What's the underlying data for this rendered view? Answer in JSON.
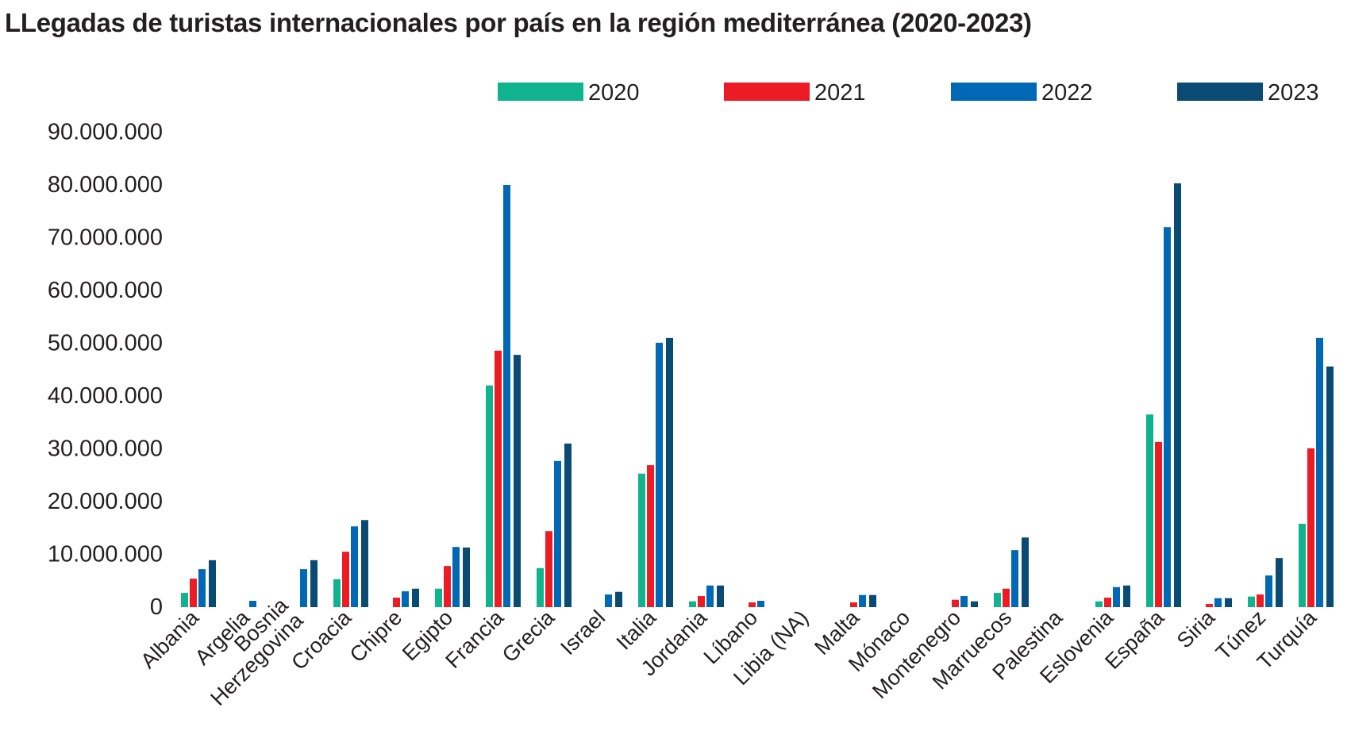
{
  "chart_data": {
    "type": "bar",
    "title": "LLegadas de turistas internacionales por país en la región mediterránea (2020-2023)",
    "xlabel": "",
    "ylabel": "",
    "ylim": [
      0,
      90000000
    ],
    "yticks": [
      0,
      10000000,
      20000000,
      30000000,
      40000000,
      50000000,
      60000000,
      70000000,
      80000000,
      90000000
    ],
    "ytick_labels": [
      "0",
      "10.000.000",
      "20.000.000",
      "30.000.000",
      "40.000.000",
      "50.000.000",
      "60.000.000",
      "70.000.000",
      "80.000.000",
      "90.000.000"
    ],
    "grid": false,
    "legend_position": "top-right",
    "categories": [
      "Albania",
      "Argelia",
      "Bosnia\nHerzegovina",
      "Croacia",
      "Chipre",
      "Egipto",
      "Francia",
      "Grecia",
      "Israel",
      "Italia",
      "Jordania",
      "Líbano",
      "Libia (NA)",
      "Malta",
      "Mónaco",
      "Montenegro",
      "Marruecos",
      "Palestina",
      "Eslovenia",
      "España",
      "Siria",
      "Túnez",
      "Turquía"
    ],
    "series": [
      {
        "name": "2020",
        "color": "#0fb48e",
        "values": [
          2700000,
          null,
          null,
          5300000,
          null,
          3500000,
          42000000,
          7400000,
          null,
          25300000,
          1100000,
          null,
          null,
          null,
          null,
          null,
          2700000,
          null,
          1100000,
          36500000,
          null,
          2000000,
          15800000
        ]
      },
      {
        "name": "2021",
        "color": "#ed1c24",
        "values": [
          5400000,
          null,
          null,
          10500000,
          1800000,
          7800000,
          48600000,
          14400000,
          null,
          26900000,
          2100000,
          900000,
          null,
          900000,
          null,
          1400000,
          3500000,
          null,
          1800000,
          31300000,
          600000,
          2400000,
          30100000
        ]
      },
      {
        "name": "2022",
        "color": "#0068b5",
        "values": [
          7200000,
          1200000,
          7200000,
          15300000,
          3000000,
          11400000,
          80000000,
          27700000,
          2400000,
          50100000,
          4100000,
          1200000,
          null,
          2300000,
          null,
          2100000,
          10800000,
          null,
          3800000,
          72000000,
          1700000,
          6000000,
          51000000
        ]
      },
      {
        "name": "2023",
        "color": "#0a4b73",
        "values": [
          8900000,
          null,
          8900000,
          16500000,
          3500000,
          11300000,
          47800000,
          31000000,
          2900000,
          51000000,
          4100000,
          null,
          null,
          2300000,
          null,
          1100000,
          13200000,
          null,
          4100000,
          80300000,
          1700000,
          9300000,
          45600000
        ]
      }
    ]
  }
}
